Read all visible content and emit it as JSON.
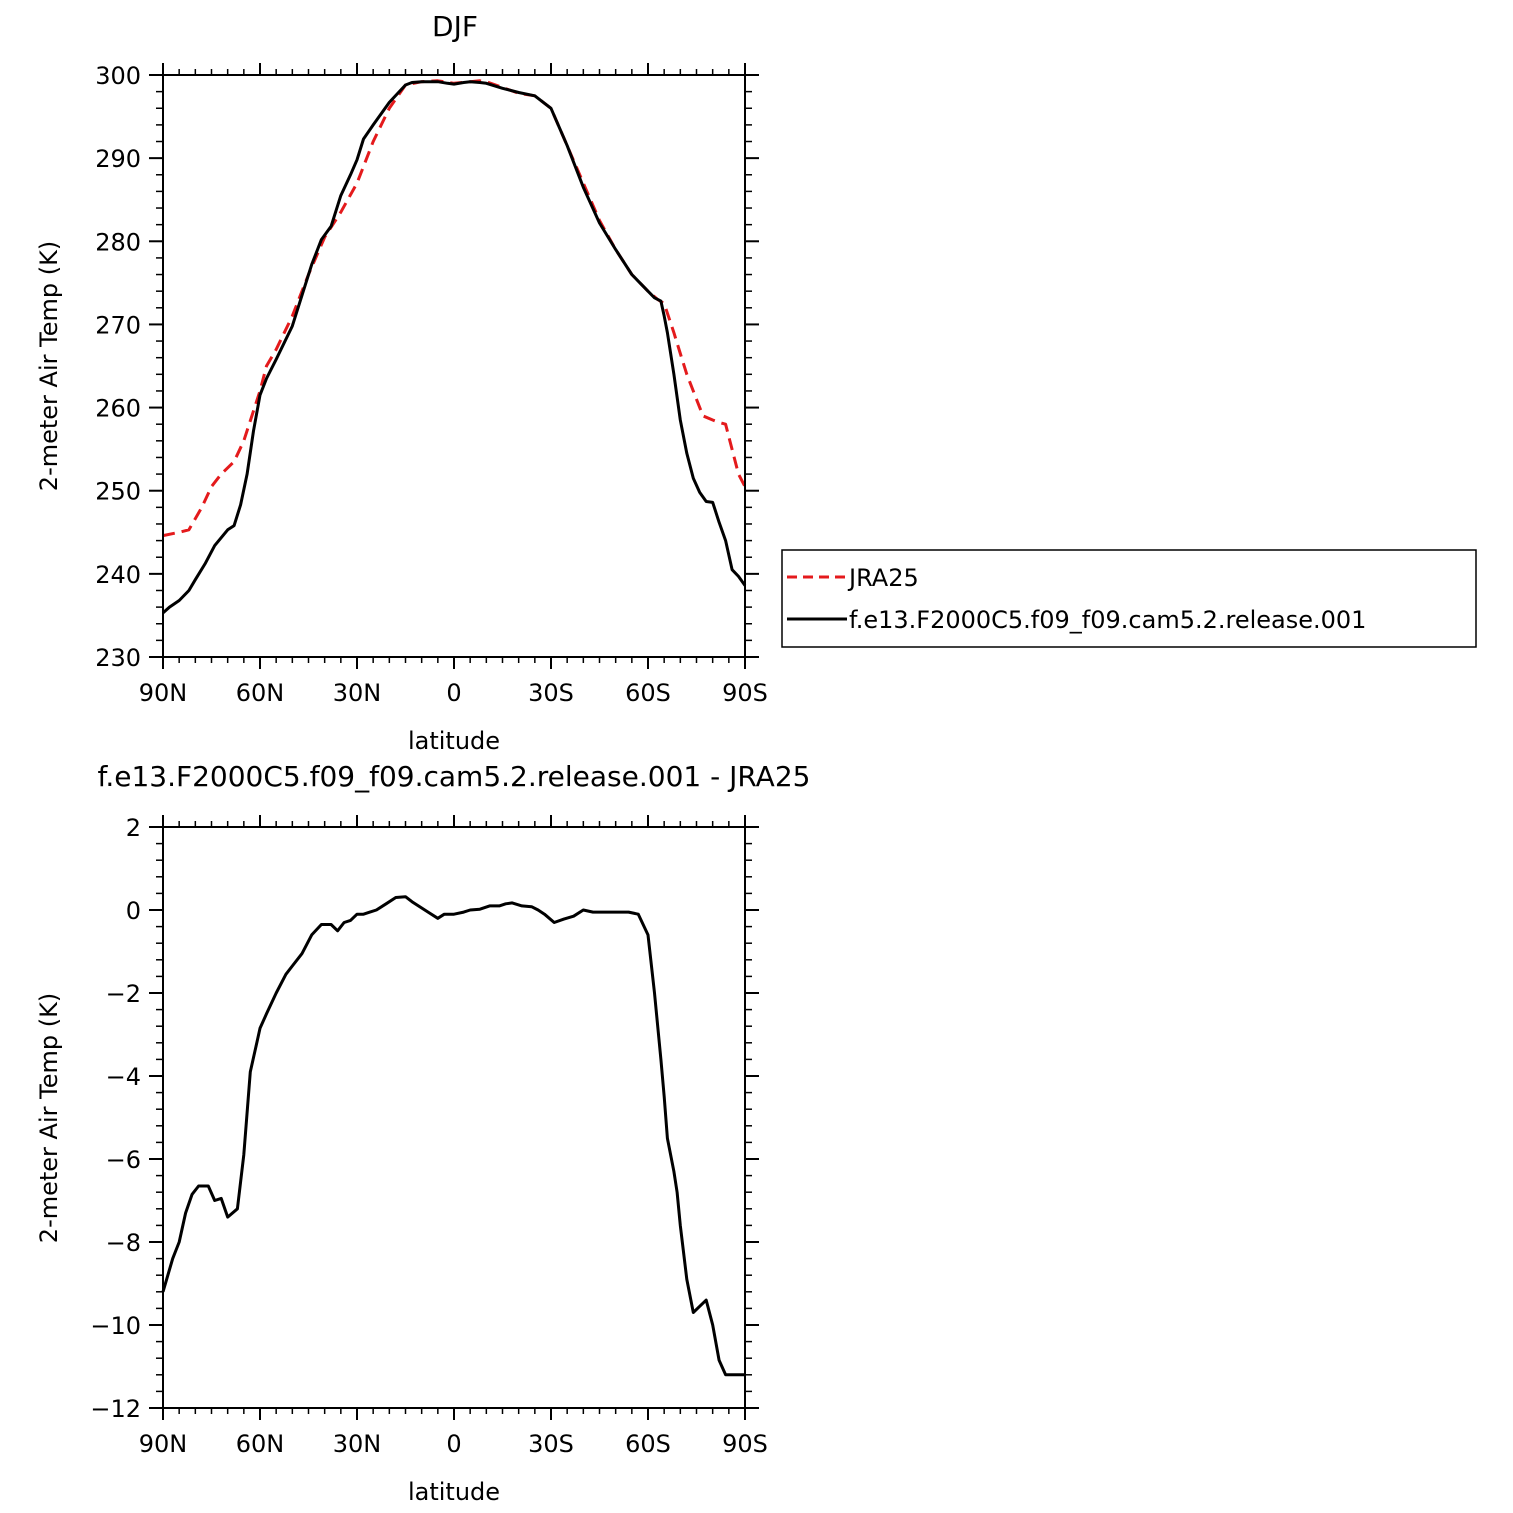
{
  "chart_data": [
    {
      "type": "line",
      "title": "DJF",
      "xlabel": "latitude",
      "ylabel": "2-meter Air Temp (K)",
      "xlim": [
        -90,
        90
      ],
      "ylim": [
        230,
        300
      ],
      "x_ticks": [
        -90,
        -60,
        -30,
        0,
        30,
        60,
        90
      ],
      "x_tick_labels": [
        "90N",
        "60N",
        "30N",
        "0",
        "30S",
        "60S",
        "90S"
      ],
      "y_ticks": [
        230,
        240,
        250,
        260,
        270,
        280,
        290,
        300
      ],
      "y_tick_labels": [
        "230",
        "240",
        "250",
        "260",
        "270",
        "280",
        "290",
        "300"
      ],
      "legend": {
        "placement": "right"
      },
      "series": [
        {
          "name": "JRA25",
          "color": "#e41a1c",
          "dash": "dashed",
          "x": [
            -90,
            -85,
            -82,
            -78,
            -75,
            -72,
            -68,
            -65,
            -60,
            -58,
            -55,
            -50,
            -45,
            -40,
            -35,
            -30,
            -28,
            -25,
            -20,
            -15,
            -10,
            -5,
            0,
            5,
            8,
            10,
            15,
            20,
            25,
            30,
            35,
            40,
            45,
            50,
            55,
            60,
            63,
            65,
            68,
            70,
            72,
            75,
            77,
            80,
            82,
            84,
            85,
            88,
            90
          ],
          "y": [
            244.6,
            245,
            245.3,
            248,
            250.5,
            252,
            253.5,
            256,
            262,
            265,
            267,
            271,
            276,
            280.5,
            283.5,
            287,
            289,
            292,
            296,
            298.8,
            299.2,
            299.3,
            299,
            299.2,
            299.3,
            299.2,
            298.5,
            297.8,
            297.5,
            296,
            291.5,
            287,
            282.5,
            279,
            276,
            274,
            273,
            272.5,
            269,
            266.5,
            264,
            261,
            259,
            258.5,
            258.2,
            258,
            256.5,
            252,
            250.5
          ]
        },
        {
          "name": "f.e13.F2000C5.f09_f09.cam5.2.release.001",
          "color": "#000000",
          "dash": "solid",
          "x": [
            -90,
            -88,
            -85,
            -82,
            -80,
            -77,
            -74,
            -70,
            -68,
            -66,
            -64,
            -62,
            -60,
            -58,
            -55,
            -50,
            -47,
            -44,
            -41,
            -38,
            -35,
            -32,
            -30,
            -28,
            -25,
            -20,
            -15,
            -13,
            -10,
            -5,
            -2,
            0,
            3,
            5,
            8,
            10,
            15,
            20,
            25,
            30,
            35,
            40,
            45,
            50,
            55,
            60,
            62,
            64,
            65,
            66,
            68,
            70,
            72,
            74,
            76,
            78,
            80,
            82,
            84,
            86,
            88,
            90
          ],
          "y": [
            235.3,
            236,
            236.8,
            238,
            239.3,
            241.2,
            243.4,
            245.3,
            245.8,
            248.3,
            252,
            257.2,
            261.5,
            263.5,
            265.8,
            269.8,
            273.5,
            277.2,
            280.2,
            281.8,
            285.5,
            288,
            289.8,
            292.3,
            294,
            296.7,
            298.8,
            299.1,
            299.2,
            299.2,
            299,
            298.9,
            299.1,
            299.2,
            299.1,
            299,
            298.4,
            297.9,
            297.5,
            296,
            291.5,
            286.5,
            282.2,
            279,
            276,
            274,
            273.2,
            272.8,
            271,
            269,
            264,
            258.5,
            254.5,
            251.5,
            249.8,
            248.7,
            248.6,
            246.2,
            244,
            240.5,
            239.7,
            238.6
          ]
        }
      ]
    },
    {
      "type": "line",
      "title": "f.e13.F2000C5.f09_f09.cam5.2.release.001 - JRA25",
      "xlabel": "latitude",
      "ylabel": "2-meter Air Temp (K)",
      "xlim": [
        -90,
        90
      ],
      "ylim": [
        -12,
        2
      ],
      "x_ticks": [
        -90,
        -60,
        -30,
        0,
        30,
        60,
        90
      ],
      "x_tick_labels": [
        "90N",
        "60N",
        "30N",
        "0",
        "30S",
        "60S",
        "90S"
      ],
      "y_ticks": [
        -12,
        -10,
        -8,
        -6,
        -4,
        -2,
        0,
        2
      ],
      "y_tick_labels": [
        "−12",
        "−10",
        "−8",
        "−6",
        "−4",
        "−2",
        "0",
        "2"
      ],
      "series": [
        {
          "color": "#000000",
          "dash": "solid",
          "x": [
            -90,
            -87,
            -85,
            -83,
            -81,
            -79,
            -76,
            -74,
            -72,
            -70,
            -67,
            -65,
            -63,
            -61,
            -60,
            -58,
            -55,
            -52,
            -50,
            -47,
            -44,
            -41,
            -38,
            -36,
            -34,
            -32,
            -30,
            -28,
            -26,
            -24,
            -21,
            -18,
            -15,
            -13,
            -11,
            -8,
            -5,
            -3,
            0,
            3,
            5,
            8,
            11,
            14,
            16,
            18,
            21,
            24,
            26,
            28,
            31,
            34,
            37,
            40,
            43,
            46,
            48,
            51,
            54,
            57,
            60,
            62,
            64,
            65,
            66,
            68,
            69,
            70,
            72,
            74,
            76,
            78,
            80,
            82,
            84,
            86,
            87,
            88,
            90
          ],
          "y": [
            -9.2,
            -8.4,
            -8,
            -7.3,
            -6.85,
            -6.65,
            -6.65,
            -7,
            -6.95,
            -7.4,
            -7.2,
            -5.9,
            -3.9,
            -3.2,
            -2.85,
            -2.5,
            -2.0,
            -1.55,
            -1.35,
            -1.05,
            -0.6,
            -0.35,
            -0.35,
            -0.5,
            -0.3,
            -0.25,
            -0.1,
            -0.1,
            -0.05,
            0.0,
            0.15,
            0.3,
            0.32,
            0.2,
            0.1,
            -0.05,
            -0.2,
            -0.1,
            -0.1,
            -0.05,
            0.0,
            0.02,
            0.1,
            0.1,
            0.15,
            0.17,
            0.1,
            0.08,
            0.0,
            -0.1,
            -0.3,
            -0.22,
            -0.15,
            0.0,
            -0.05,
            -0.05,
            -0.05,
            -0.05,
            -0.05,
            -0.1,
            -0.6,
            -2.0,
            -3.6,
            -4.5,
            -5.5,
            -6.3,
            -6.8,
            -7.6,
            -8.9,
            -9.7,
            -9.55,
            -9.4,
            -10.0,
            -10.85,
            -11.2,
            -11.2,
            -11.2,
            -11.2,
            -11.2
          ]
        }
      ]
    }
  ]
}
